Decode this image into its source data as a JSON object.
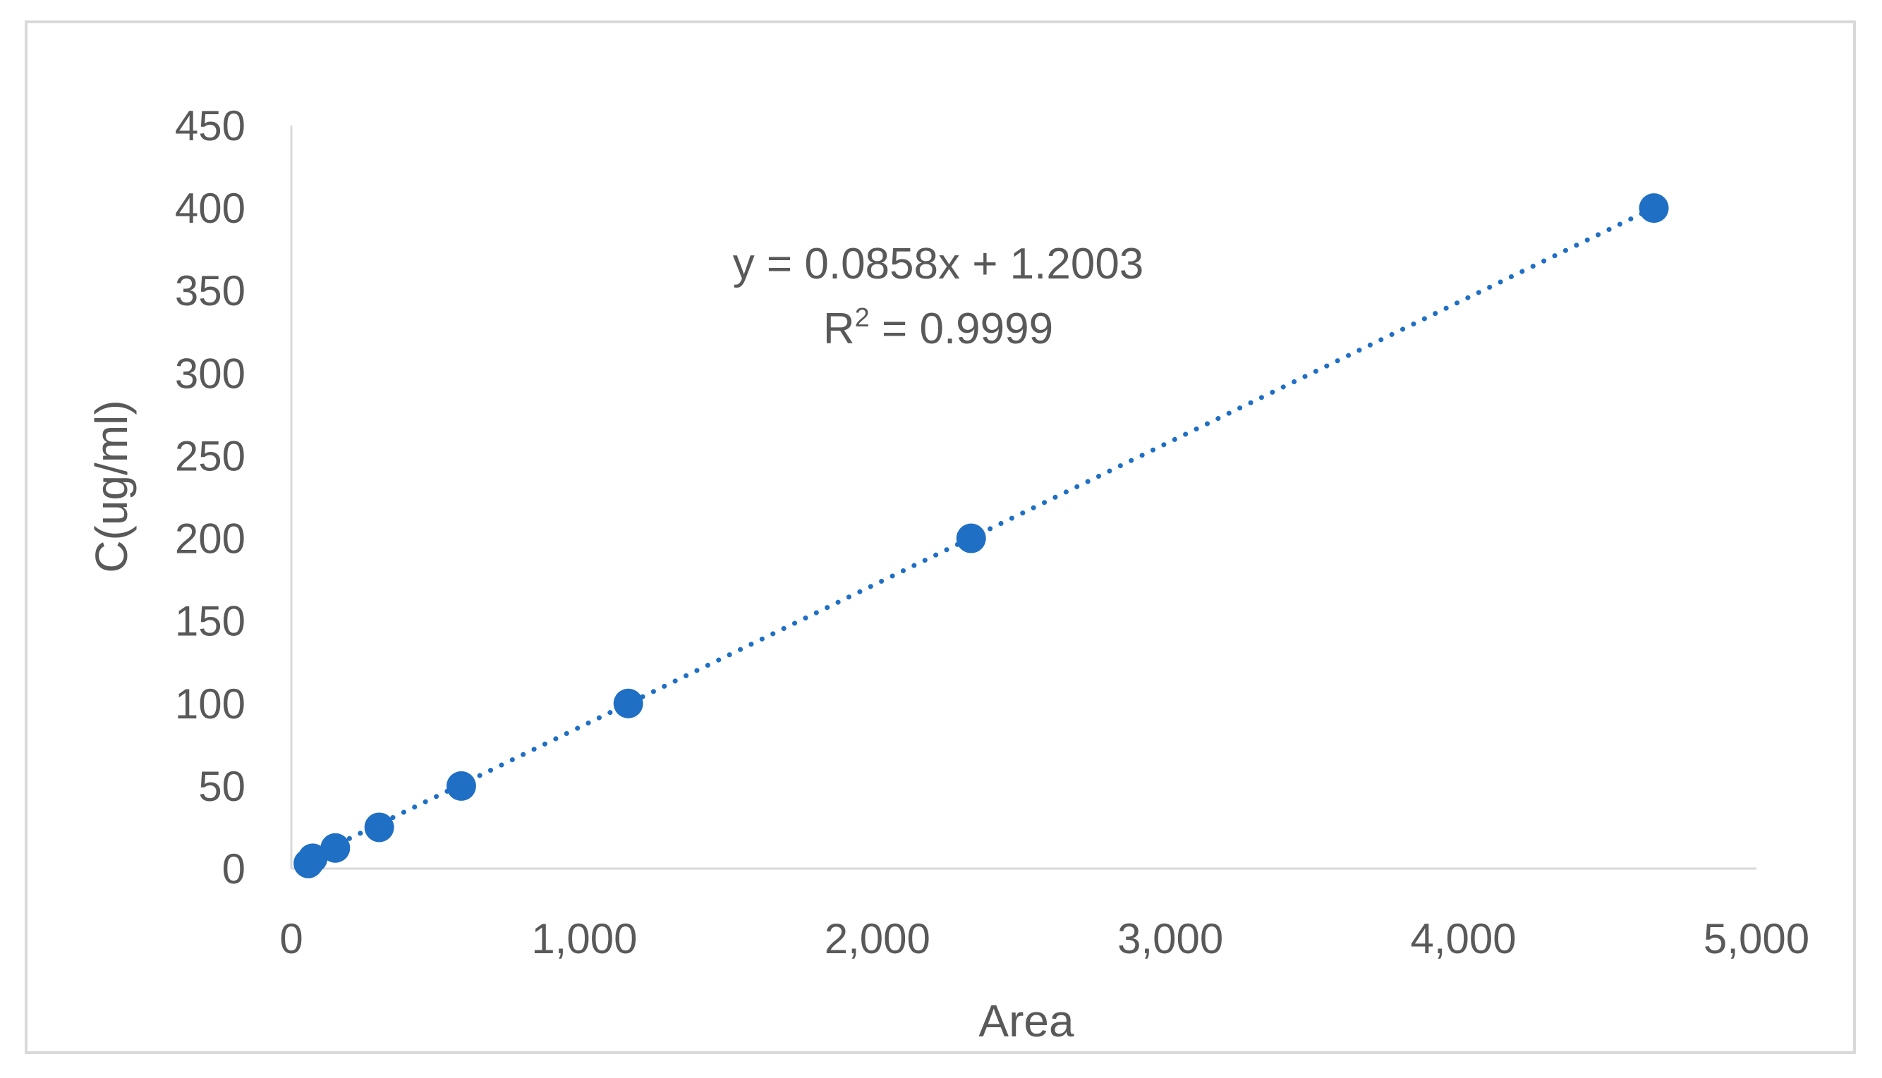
{
  "chart_data": {
    "type": "scatter",
    "title": "",
    "xlabel": "Area",
    "ylabel": "C(ug/ml)",
    "xlim": [
      0,
      5000
    ],
    "ylim": [
      0,
      450
    ],
    "x_ticks": [
      0,
      1000,
      2000,
      3000,
      4000,
      5000
    ],
    "x_tick_labels": [
      "0",
      "1,000",
      "2,000",
      "3,000",
      "4,000",
      "5,000"
    ],
    "y_ticks": [
      0,
      50,
      100,
      150,
      200,
      250,
      300,
      350,
      400,
      450
    ],
    "y_tick_labels": [
      "0",
      "50",
      "100",
      "150",
      "200",
      "250",
      "300",
      "350",
      "400",
      "450"
    ],
    "grid": false,
    "legend": "none",
    "series": [
      {
        "color": "#1f6fc4",
        "points": [
          {
            "x": 58,
            "y": 3.125
          },
          {
            "x": 73,
            "y": 6.25
          },
          {
            "x": 150,
            "y": 12.5
          },
          {
            "x": 300,
            "y": 25
          },
          {
            "x": 580,
            "y": 50
          },
          {
            "x": 1150,
            "y": 100
          },
          {
            "x": 2320,
            "y": 200
          },
          {
            "x": 4650,
            "y": 400
          }
        ],
        "trendline": {
          "type": "linear",
          "style": "dotted",
          "slope": 0.0858,
          "intercept": 1.2003,
          "x_range": [
            50,
            4650
          ]
        }
      }
    ],
    "annotations": {
      "equation": "y = 0.0858x + 1.2003",
      "r2_prefix": "R",
      "r2_sup": "2",
      "r2_value": " = 0.9999"
    }
  }
}
